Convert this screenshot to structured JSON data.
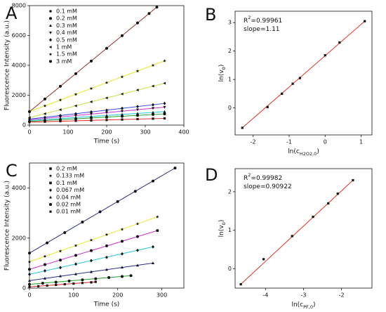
{
  "chart_data": [
    {
      "type": "scatter",
      "panel": "A",
      "x_label": "Time (s)",
      "y_label": "Fluorescence Intensity (a.u.)",
      "xlim": [
        0,
        400
      ],
      "xticks": [
        0,
        100,
        200,
        300,
        400
      ],
      "ylim": [
        0,
        8000
      ],
      "yticks": [
        0,
        2000,
        4000,
        6000,
        8000
      ],
      "legend": "upper left",
      "marker_color": "#111111",
      "series": [
        {
          "name": "0.1 mM",
          "marker": "square",
          "color": "#e02020",
          "x": [
            0,
            40,
            80,
            120,
            160,
            200,
            240,
            280,
            320,
            350
          ],
          "values": [
            200,
            230,
            260,
            290,
            310,
            340,
            370,
            400,
            430,
            450
          ]
        },
        {
          "name": "0.2 mM",
          "marker": "circle",
          "color": "#20a020",
          "x": [
            0,
            40,
            80,
            120,
            160,
            200,
            240,
            280,
            320,
            350
          ],
          "values": [
            250,
            310,
            360,
            420,
            480,
            530,
            590,
            650,
            710,
            750
          ]
        },
        {
          "name": "0.3 mM",
          "marker": "triangle-up",
          "color": "#20c8d8",
          "x": [
            0,
            40,
            80,
            120,
            160,
            200,
            240,
            280,
            320,
            350
          ],
          "values": [
            300,
            370,
            440,
            510,
            570,
            640,
            710,
            780,
            850,
            900
          ]
        },
        {
          "name": "0.4 mM",
          "marker": "triangle-down",
          "color": "#d030d0",
          "x": [
            0,
            40,
            80,
            120,
            160,
            200,
            240,
            280,
            320,
            350
          ],
          "values": [
            350,
            450,
            540,
            640,
            740,
            840,
            930,
            1030,
            1130,
            1200
          ]
        },
        {
          "name": "0.5 mM",
          "marker": "diamond",
          "color": "#3040e0",
          "x": [
            0,
            40,
            80,
            120,
            160,
            200,
            240,
            280,
            320,
            350
          ],
          "values": [
            400,
            520,
            640,
            760,
            880,
            1000,
            1120,
            1240,
            1360,
            1450
          ]
        },
        {
          "name": "1 mM",
          "marker": "triangle-left",
          "color": "#c8e040",
          "x": [
            0,
            40,
            80,
            120,
            160,
            200,
            240,
            280,
            320,
            350
          ],
          "values": [
            500,
            760,
            1030,
            1290,
            1560,
            1820,
            2080,
            2350,
            2610,
            2800
          ]
        },
        {
          "name": "1.5 mM",
          "marker": "star",
          "color": "#e8e820",
          "x": [
            0,
            40,
            80,
            120,
            160,
            200,
            240,
            280,
            320,
            350
          ],
          "values": [
            900,
            1290,
            1680,
            2060,
            2450,
            2840,
            3230,
            3620,
            4000,
            4300
          ]
        },
        {
          "name": "3 mM",
          "marker": "circle",
          "color": "#9a2a2a",
          "x": [
            0,
            40,
            80,
            120,
            160,
            200,
            240,
            280,
            310,
            330
          ],
          "values": [
            900,
            1750,
            2600,
            3440,
            4290,
            5140,
            5990,
            6840,
            7470,
            7900
          ]
        }
      ]
    },
    {
      "type": "scatter",
      "panel": "B",
      "x_label": [
        "ln(c",
        {
          "sub": "H2O2,0"
        },
        ")"
      ],
      "y_label": [
        "ln(v",
        {
          "sub": "0"
        },
        ")"
      ],
      "xlim": [
        -2.5,
        1.3
      ],
      "xticks": [
        -2,
        -1,
        0,
        1
      ],
      "ylim": [
        -0.95,
        3.4
      ],
      "yticks": [
        0,
        1,
        2,
        3
      ],
      "annotations": [
        [
          "R",
          {
            "sup": "2"
          },
          "=0.99961"
        ],
        [
          "slope=1.11"
        ]
      ],
      "marker_color": "#111111",
      "series": [
        {
          "marker": "square",
          "color": "#e03020",
          "x": [
            -2.3,
            -1.6,
            -1.2,
            -0.9,
            -0.7,
            0,
            0.4,
            1.1
          ],
          "values": [
            -0.7,
            0.03,
            0.5,
            0.85,
            1.05,
            1.85,
            2.3,
            3.05
          ]
        }
      ]
    },
    {
      "type": "scatter",
      "panel": "C",
      "x_label": "Time (s)",
      "y_label": "Fluorescence Intensity (a.u.)",
      "xlim": [
        0,
        350
      ],
      "xticks": [
        0,
        100,
        200,
        300
      ],
      "ylim": [
        0,
        5000
      ],
      "yticks": [
        0,
        2000,
        4000
      ],
      "legend": "upper left",
      "marker_color": "#111111",
      "series": [
        {
          "name": "0.2 mM",
          "marker": "circle",
          "color": "#2a2a80",
          "x": [
            0,
            40,
            80,
            120,
            160,
            200,
            240,
            280,
            330
          ],
          "values": [
            1400,
            1810,
            2220,
            2640,
            3050,
            3460,
            3870,
            4280,
            4800
          ]
        },
        {
          "name": "0.133 mM",
          "marker": "star",
          "color": "#e8e820",
          "x": [
            0,
            35,
            70,
            105,
            140,
            175,
            210,
            245,
            290
          ],
          "values": [
            1050,
            1270,
            1480,
            1700,
            1920,
            2140,
            2350,
            2570,
            2850
          ]
        },
        {
          "name": "0.1 mM",
          "marker": "circle",
          "color": "#d030d0",
          "x": [
            0,
            35,
            70,
            105,
            140,
            175,
            210,
            245,
            290
          ],
          "values": [
            750,
            940,
            1120,
            1310,
            1500,
            1690,
            1870,
            2060,
            2300
          ]
        },
        {
          "name": "0.067 mM",
          "marker": "diamond",
          "color": "#20c8d8",
          "x": [
            0,
            35,
            70,
            105,
            140,
            175,
            210,
            245,
            280
          ],
          "values": [
            550,
            690,
            820,
            960,
            1100,
            1230,
            1370,
            1510,
            1650
          ]
        },
        {
          "name": "0.04 mM",
          "marker": "triangle-up",
          "color": "#2a2a90",
          "x": [
            0,
            35,
            70,
            105,
            140,
            175,
            210,
            245,
            280
          ],
          "values": [
            300,
            390,
            480,
            560,
            650,
            740,
            830,
            910,
            1000
          ]
        },
        {
          "name": "0.02 mM",
          "marker": "circle",
          "color": "#20a020",
          "x": [
            0,
            30,
            60,
            90,
            120,
            150,
            180,
            210,
            230
          ],
          "values": [
            150,
            195,
            240,
            285,
            330,
            375,
            420,
            465,
            500
          ]
        },
        {
          "name": "0.01 mM",
          "marker": "square",
          "color": "#e02020",
          "x": [
            0,
            20,
            40,
            60,
            80,
            100,
            120,
            140,
            150
          ],
          "values": [
            50,
            75,
            100,
            130,
            155,
            180,
            205,
            230,
            250
          ]
        }
      ]
    },
    {
      "type": "scatter",
      "panel": "D",
      "x_label": [
        "ln(c",
        {
          "sub": "PF,0"
        },
        ")"
      ],
      "y_label": [
        "ln(v",
        {
          "sub": "0"
        },
        ")"
      ],
      "xlim": [
        -4.8,
        -1.2
      ],
      "xticks": [
        -4,
        -3,
        -2
      ],
      "ylim": [
        -0.5,
        2.6
      ],
      "yticks": [
        0,
        1,
        2
      ],
      "annotations": [
        [
          "R",
          {
            "sup": "2"
          },
          "=0.99982"
        ],
        [
          "slope=0.90922"
        ]
      ],
      "marker_color": "#111111",
      "series": [
        {
          "marker": "square",
          "color": "#e03020",
          "x": [
            -4.65,
            -4.05,
            -3.3,
            -2.75,
            -2.35,
            -2.1,
            -1.7
          ],
          "values": [
            -0.4,
            0.25,
            0.85,
            1.35,
            1.7,
            1.95,
            2.3
          ]
        }
      ]
    }
  ]
}
